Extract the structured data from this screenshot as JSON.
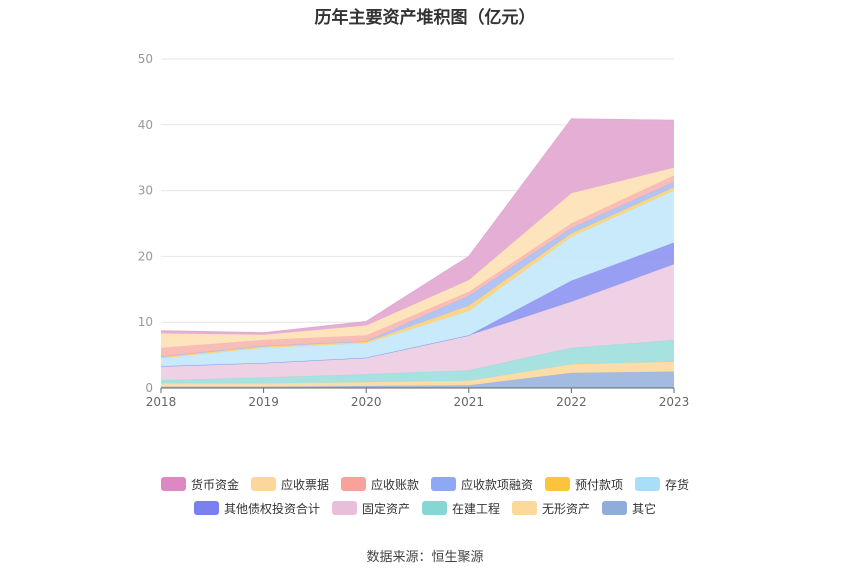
{
  "chart_data": {
    "type": "area",
    "stacked": true,
    "title": "历年主要资产堆积图（亿元）",
    "x": [
      "2018",
      "2019",
      "2020",
      "2021",
      "2022",
      "2023"
    ],
    "ylim": [
      0,
      50
    ],
    "yticks": [
      0,
      10,
      20,
      30,
      40,
      50
    ],
    "grid": true,
    "legend_position": "bottom",
    "series": [
      {
        "name": "其它",
        "color": "#9bb5de",
        "values": [
          0.2,
          0.2,
          0.3,
          0.4,
          2.3,
          2.5
        ]
      },
      {
        "name": "无形资产",
        "color": "#fcd9a0",
        "values": [
          0.5,
          0.5,
          0.6,
          0.7,
          1.3,
          1.5
        ]
      },
      {
        "name": "在建工程",
        "color": "#9fdedd",
        "values": [
          0.5,
          0.9,
          1.2,
          1.6,
          2.5,
          3.3
        ]
      },
      {
        "name": "固定资产",
        "color": "#eecde3",
        "values": [
          2.1,
          2.2,
          2.5,
          5.3,
          7.0,
          11.5
        ]
      },
      {
        "name": "其他债权投资合计",
        "color": "#8f96f1",
        "values": [
          0.0,
          0.0,
          0.0,
          0.0,
          3.2,
          3.3
        ]
      },
      {
        "name": "存货",
        "color": "#c3e8fa",
        "values": [
          1.2,
          2.3,
          2.2,
          3.7,
          6.7,
          7.9
        ]
      },
      {
        "name": "预付款项",
        "color": "#fcd27a",
        "values": [
          0.2,
          0.2,
          0.2,
          0.8,
          0.5,
          0.5
        ]
      },
      {
        "name": "应收款项融资",
        "color": "#a9bff5",
        "values": [
          0.1,
          0.1,
          0.1,
          1.5,
          0.8,
          0.8
        ]
      },
      {
        "name": "应收账款",
        "color": "#f9b7b1",
        "values": [
          1.3,
          0.9,
          0.9,
          0.6,
          0.7,
          1.0
        ]
      },
      {
        "name": "应收票据",
        "color": "#fde2b6",
        "values": [
          2.2,
          0.8,
          1.5,
          1.8,
          4.6,
          1.2
        ]
      },
      {
        "name": "货币资金",
        "color": "#e3a8d1",
        "values": [
          0.4,
          0.3,
          0.6,
          3.6,
          11.3,
          7.2
        ]
      }
    ]
  },
  "legend": {
    "row1": [
      {
        "name": "货币资金",
        "color": "#dd88c3"
      },
      {
        "name": "应收票据",
        "color": "#fcd79b"
      },
      {
        "name": "应收账款",
        "color": "#f7a39b"
      },
      {
        "name": "应收款项融资",
        "color": "#8fa8f3"
      },
      {
        "name": "预付款项",
        "color": "#fbc43c"
      },
      {
        "name": "存货",
        "color": "#a8def8"
      }
    ],
    "row2": [
      {
        "name": "其他债权投资合计",
        "color": "#7a80ef"
      },
      {
        "name": "固定资产",
        "color": "#e8bedb"
      },
      {
        "name": "在建工程",
        "color": "#86d6d4"
      },
      {
        "name": "无形资产",
        "color": "#fcd89a"
      },
      {
        "name": "其它",
        "color": "#90acd8"
      }
    ]
  },
  "source": "数据来源：恒生聚源"
}
